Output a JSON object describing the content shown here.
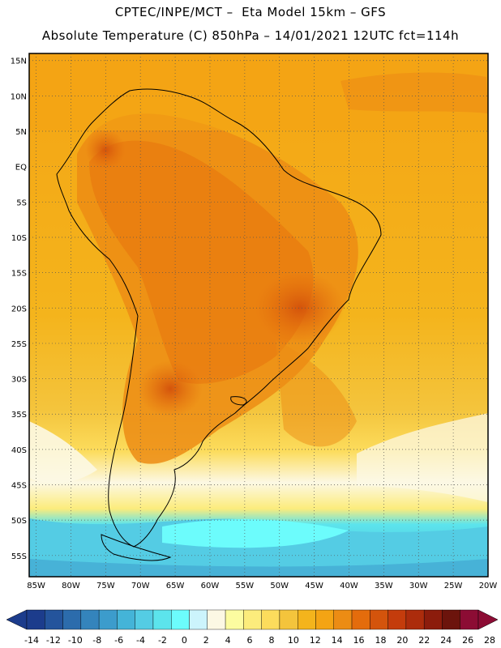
{
  "header": {
    "line1": "CPTEC/INPE/MCT –  Eta Model 15km – GFS",
    "line2": "Absolute Temperature (C) 850hPa – 14/01/2021 12UTC fct=114h"
  },
  "map": {
    "lon_range": [
      -86,
      -20
    ],
    "lat_range": [
      -58,
      16
    ],
    "lat_labels": [
      {
        "value": 15,
        "text": "15N"
      },
      {
        "value": 10,
        "text": "10N"
      },
      {
        "value": 5,
        "text": "5N"
      },
      {
        "value": 0,
        "text": "EQ"
      },
      {
        "value": -5,
        "text": "5S"
      },
      {
        "value": -10,
        "text": "10S"
      },
      {
        "value": -15,
        "text": "15S"
      },
      {
        "value": -20,
        "text": "20S"
      },
      {
        "value": -25,
        "text": "25S"
      },
      {
        "value": -30,
        "text": "30S"
      },
      {
        "value": -35,
        "text": "35S"
      },
      {
        "value": -40,
        "text": "40S"
      },
      {
        "value": -45,
        "text": "45S"
      },
      {
        "value": -50,
        "text": "50S"
      },
      {
        "value": -55,
        "text": "55S"
      }
    ],
    "lon_labels": [
      {
        "value": -85,
        "text": "85W"
      },
      {
        "value": -80,
        "text": "80W"
      },
      {
        "value": -75,
        "text": "75W"
      },
      {
        "value": -70,
        "text": "70W"
      },
      {
        "value": -65,
        "text": "65W"
      },
      {
        "value": -60,
        "text": "60W"
      },
      {
        "value": -55,
        "text": "55W"
      },
      {
        "value": -50,
        "text": "50W"
      },
      {
        "value": -45,
        "text": "45W"
      },
      {
        "value": -40,
        "text": "40W"
      },
      {
        "value": -35,
        "text": "35W"
      },
      {
        "value": -30,
        "text": "30W"
      },
      {
        "value": -25,
        "text": "25W"
      },
      {
        "value": -20,
        "text": "20W"
      }
    ]
  },
  "colorbar": {
    "colors": [
      "#1c3c8c",
      "#24549c",
      "#2c6cac",
      "#3484bc",
      "#3c9ccc",
      "#44b4d8",
      "#54cce4",
      "#5ce4ec",
      "#6cfcfc",
      "#ccf4fc",
      "#fcf8e4",
      "#fcfca0",
      "#fcec7c",
      "#fcdc5c",
      "#f4c43c",
      "#f4b41c",
      "#f4a414",
      "#ec8c14",
      "#e46c0c",
      "#d4540c",
      "#c43c0c",
      "#ac2c0c",
      "#8c1c0c",
      "#6c140c",
      "#8c0c34"
    ],
    "low_arrow_color": "#1c3c8c",
    "high_arrow_color": "#8c0c34",
    "labels": [
      "-14",
      "-12",
      "-10",
      "-8",
      "-6",
      "-4",
      "-2",
      "0",
      "2",
      "4",
      "6",
      "8",
      "10",
      "12",
      "14",
      "16",
      "18",
      "20",
      "22",
      "24",
      "26",
      "28"
    ]
  }
}
